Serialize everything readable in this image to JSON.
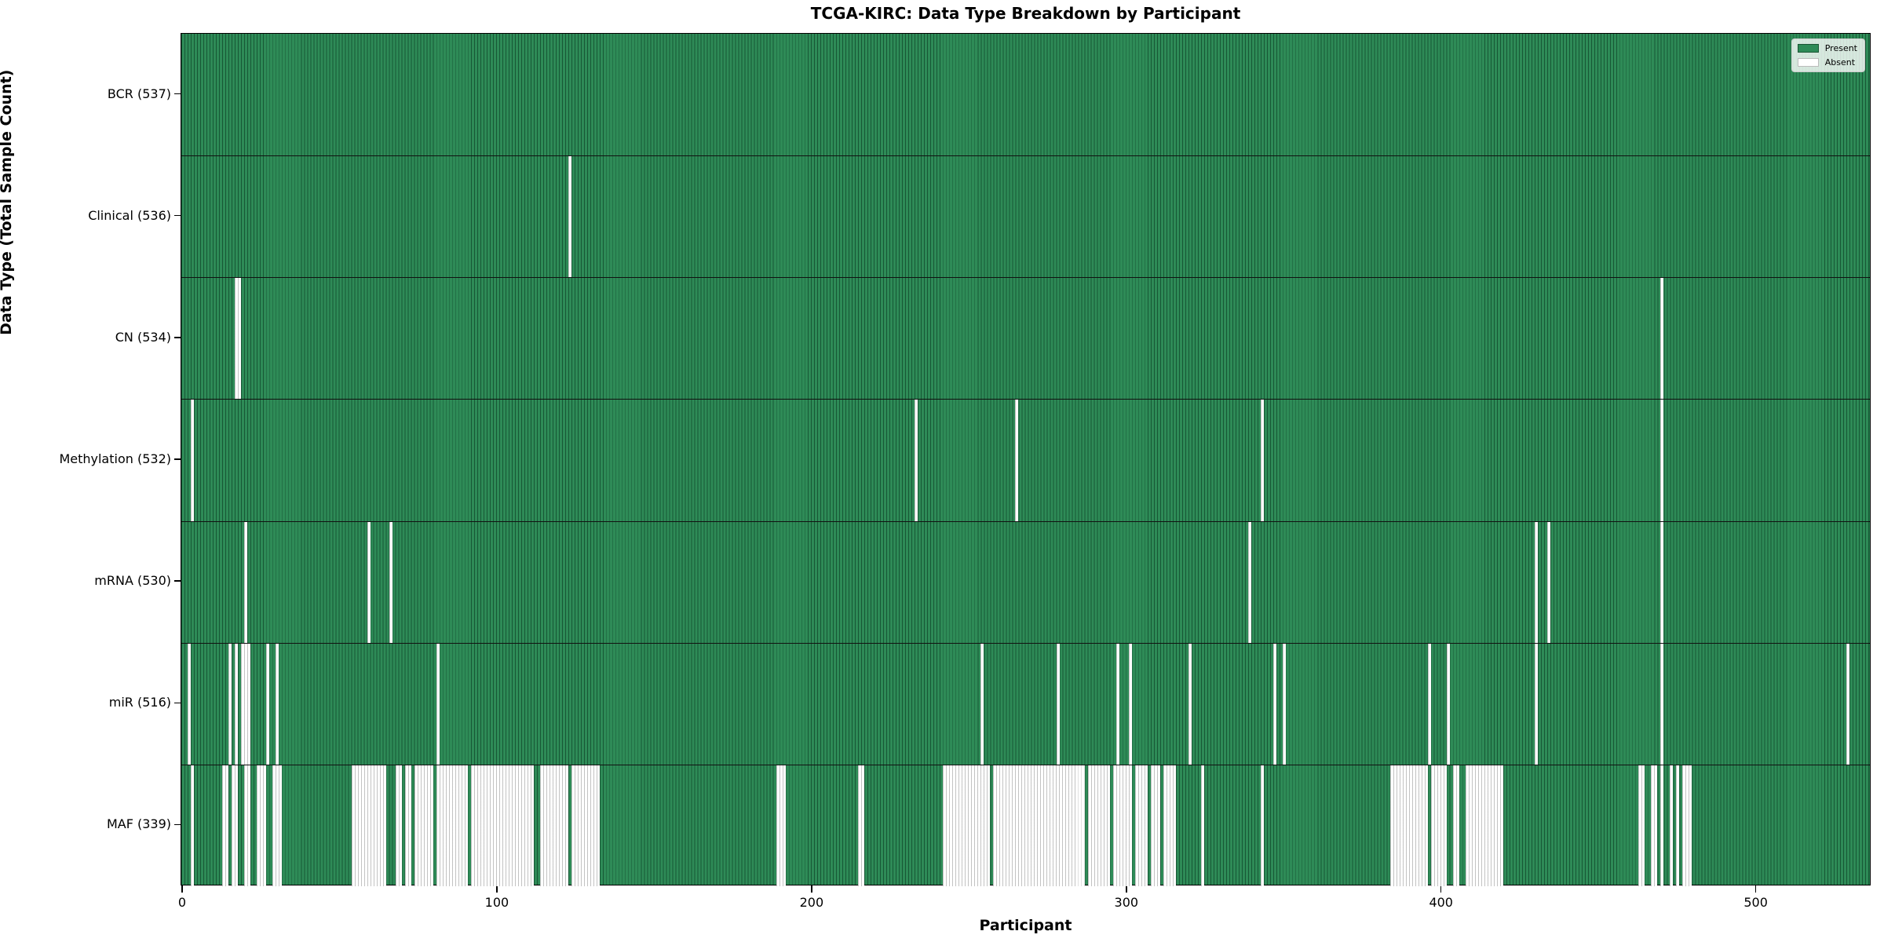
{
  "title": "TCGA-KIRC: Data Type Breakdown by Participant",
  "chart_data": {
    "type": "heatmap",
    "title": "TCGA-KIRC: Data Type Breakdown by Participant",
    "xlabel": "Participant",
    "ylabel": "Data Type (Total Sample Count)",
    "n_participants": 537,
    "xlim": [
      -0.5,
      536.5
    ],
    "x_ticks": [
      0,
      100,
      200,
      300,
      400,
      500
    ],
    "grid": false,
    "legend_position": "upper right",
    "colors": {
      "present": "#2e8b57",
      "absent": "#ffffff",
      "row_boundary": "#111111"
    },
    "legend": {
      "present_label": "Present",
      "absent_label": "Absent"
    },
    "rows": [
      {
        "data_type": "BCR",
        "label": "BCR (537)",
        "present_count": 537,
        "absent_count": 0,
        "absent_runs": []
      },
      {
        "data_type": "Clinical",
        "label": "Clinical (536)",
        "present_count": 536,
        "absent_count": 1,
        "absent_runs": [
          [
            123,
            123
          ]
        ]
      },
      {
        "data_type": "CN",
        "label": "CN (534)",
        "present_count": 534,
        "absent_count": 3,
        "absent_runs": [
          [
            17,
            18
          ],
          [
            470,
            470
          ]
        ]
      },
      {
        "data_type": "Methylation",
        "label": "Methylation (532)",
        "present_count": 532,
        "absent_count": 5,
        "absent_runs": [
          [
            3,
            3
          ],
          [
            233,
            233
          ],
          [
            265,
            265
          ],
          [
            343,
            343
          ],
          [
            470,
            470
          ]
        ]
      },
      {
        "data_type": "mRNA",
        "label": "mRNA (530)",
        "present_count": 530,
        "absent_count": 7,
        "absent_runs": [
          [
            20,
            20
          ],
          [
            59,
            59
          ],
          [
            66,
            66
          ],
          [
            339,
            339
          ],
          [
            430,
            430
          ],
          [
            434,
            434
          ],
          [
            470,
            470
          ]
        ]
      },
      {
        "data_type": "miR",
        "label": "miR (516)",
        "present_count": 516,
        "absent_count": 21,
        "absent_runs": [
          [
            2,
            2
          ],
          [
            15,
            15
          ],
          [
            17,
            17
          ],
          [
            19,
            21
          ],
          [
            27,
            27
          ],
          [
            30,
            30
          ],
          [
            81,
            81
          ],
          [
            254,
            254
          ],
          [
            278,
            278
          ],
          [
            297,
            297
          ],
          [
            301,
            301
          ],
          [
            320,
            320
          ],
          [
            347,
            347
          ],
          [
            350,
            350
          ],
          [
            396,
            396
          ],
          [
            402,
            402
          ],
          [
            430,
            430
          ],
          [
            470,
            470
          ],
          [
            529,
            529
          ]
        ]
      },
      {
        "data_type": "MAF",
        "label": "MAF (339)",
        "present_count": 339,
        "absent_count": 198,
        "absent_runs": [
          [
            3,
            3
          ],
          [
            13,
            14
          ],
          [
            16,
            17
          ],
          [
            20,
            21
          ],
          [
            24,
            26
          ],
          [
            29,
            31
          ],
          [
            54,
            64
          ],
          [
            68,
            69
          ],
          [
            71,
            72
          ],
          [
            74,
            79
          ],
          [
            81,
            90
          ],
          [
            92,
            111
          ],
          [
            114,
            122
          ],
          [
            124,
            132
          ],
          [
            189,
            191
          ],
          [
            215,
            216
          ],
          [
            242,
            256
          ],
          [
            258,
            286
          ],
          [
            288,
            294
          ],
          [
            296,
            301
          ],
          [
            303,
            306
          ],
          [
            308,
            310
          ],
          [
            312,
            315
          ],
          [
            324,
            324
          ],
          [
            343,
            343
          ],
          [
            384,
            395
          ],
          [
            397,
            401
          ],
          [
            404,
            405
          ],
          [
            408,
            419
          ],
          [
            463,
            464
          ],
          [
            467,
            468
          ],
          [
            470,
            470
          ],
          [
            473,
            473
          ],
          [
            475,
            475
          ],
          [
            477,
            479
          ]
        ]
      }
    ]
  }
}
